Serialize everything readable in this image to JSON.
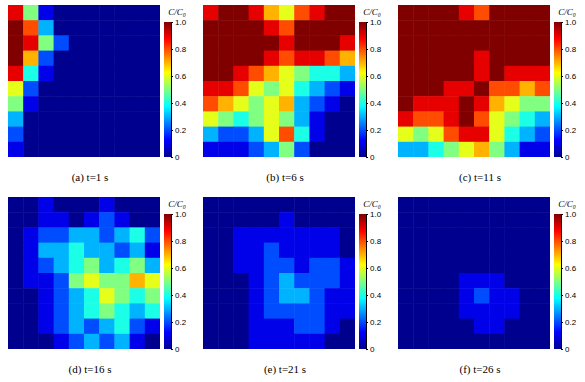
{
  "chart_data": [
    {
      "type": "heatmap",
      "title": "(a) t=1 s",
      "tick_labels": false,
      "colorbar": {
        "label": "C/C₀",
        "range": [
          0,
          1
        ],
        "ticks": [
          0,
          0.2,
          0.4,
          0.6,
          0.8,
          {
            "value": 1,
            "label": "1.0"
          }
        ]
      },
      "cells": [
        [
          0.9,
          0.5,
          0.1,
          0,
          0,
          0,
          0,
          0,
          0,
          0
        ],
        [
          1,
          0.8,
          0.3,
          0,
          0,
          0,
          0,
          0,
          0,
          0
        ],
        [
          1,
          0.9,
          0.5,
          0.2,
          0,
          0,
          0,
          0,
          0,
          0
        ],
        [
          1,
          0.7,
          0.2,
          0,
          0,
          0,
          0,
          0,
          0,
          0
        ],
        [
          0.9,
          0.4,
          0.1,
          0,
          0,
          0,
          0,
          0,
          0,
          0
        ],
        [
          0.6,
          0.2,
          0,
          0,
          0,
          0,
          0,
          0,
          0,
          0
        ],
        [
          0.5,
          0.1,
          0,
          0,
          0,
          0,
          0,
          0,
          0,
          0
        ],
        [
          0.3,
          0,
          0,
          0,
          0,
          0,
          0,
          0,
          0,
          0
        ],
        [
          0.2,
          0,
          0,
          0,
          0,
          0,
          0,
          0,
          0,
          0
        ],
        [
          0.1,
          0,
          0,
          0,
          0,
          0,
          0,
          0,
          0,
          0
        ]
      ]
    },
    {
      "type": "heatmap",
      "title": "(b) t=6 s",
      "tick_labels": false,
      "colorbar": {
        "label": "C/C₀",
        "range": [
          0,
          1
        ],
        "ticks": [
          0,
          0.2,
          0.4,
          0.6,
          0.8,
          {
            "value": 1,
            "label": "1.0"
          }
        ]
      },
      "cells": [
        [
          0.9,
          1,
          1,
          0.9,
          0.7,
          0.6,
          0.8,
          0.9,
          1,
          1
        ],
        [
          1,
          1,
          1,
          1,
          0.9,
          0.8,
          1,
          1,
          1,
          1
        ],
        [
          1,
          1,
          1,
          1,
          1,
          0.9,
          1,
          1,
          1,
          0.9
        ],
        [
          1,
          1,
          1,
          1,
          0.9,
          0.8,
          0.9,
          0.9,
          0.8,
          0.7
        ],
        [
          1,
          1,
          0.9,
          0.8,
          0.7,
          0.6,
          0.5,
          0.4,
          0.4,
          0.3
        ],
        [
          0.9,
          0.9,
          0.8,
          0.6,
          0.5,
          0.6,
          0.4,
          0.3,
          0.2,
          0.1
        ],
        [
          0.8,
          0.7,
          0.6,
          0.5,
          0.6,
          0.7,
          0.3,
          0.2,
          0.1,
          0
        ],
        [
          0.6,
          0.5,
          0.4,
          0.5,
          0.6,
          0.5,
          0.3,
          0.1,
          0,
          0
        ],
        [
          0.3,
          0.2,
          0.2,
          0.3,
          0.6,
          0.8,
          0.4,
          0.1,
          0,
          0
        ],
        [
          0.1,
          0.1,
          0.1,
          0.2,
          0.3,
          0.5,
          0.2,
          0,
          0,
          0
        ]
      ]
    },
    {
      "type": "heatmap",
      "title": "(c) t=11 s",
      "tick_labels": false,
      "colorbar": {
        "label": "C/C₀",
        "range": [
          0,
          1
        ],
        "ticks": [
          0,
          0.2,
          0.4,
          0.6,
          0.8,
          {
            "value": 1,
            "label": "1.0"
          }
        ]
      },
      "cells": [
        [
          1,
          1,
          1,
          1,
          0.9,
          0.8,
          1,
          1,
          1,
          1
        ],
        [
          1,
          1,
          1,
          1,
          1,
          1,
          1,
          1,
          1,
          1
        ],
        [
          1,
          1,
          1,
          1,
          1,
          1,
          1,
          1,
          1,
          1
        ],
        [
          1,
          1,
          1,
          1,
          1,
          0.9,
          1,
          1,
          1,
          1
        ],
        [
          1,
          1,
          1,
          1,
          1,
          0.9,
          1,
          0.9,
          0.9,
          0.9
        ],
        [
          1,
          1,
          1,
          0.9,
          0.9,
          1,
          0.8,
          0.8,
          0.7,
          0.8
        ],
        [
          1,
          0.9,
          0.9,
          0.9,
          1,
          0.9,
          0.7,
          0.6,
          0.5,
          0.5
        ],
        [
          0.9,
          0.8,
          0.8,
          0.9,
          1,
          0.8,
          0.6,
          0.5,
          0.4,
          0.3
        ],
        [
          0.6,
          0.5,
          0.6,
          0.8,
          0.9,
          0.9,
          0.6,
          0.4,
          0.3,
          0.2
        ],
        [
          0.3,
          0.3,
          0.4,
          0.5,
          0.6,
          0.7,
          0.5,
          0.3,
          0.1,
          0.1
        ]
      ]
    },
    {
      "type": "heatmap",
      "title": "(d) t=16 s",
      "tick_labels": false,
      "colorbar": {
        "label": "C/C₀",
        "range": [
          0,
          1
        ],
        "ticks": [
          0,
          0.2,
          0.4,
          0.6,
          0.8,
          {
            "value": 1,
            "label": "1.0"
          }
        ]
      },
      "cells": [
        [
          0,
          0,
          0.1,
          0,
          0,
          0,
          0.1,
          0,
          0,
          0
        ],
        [
          0,
          0,
          0.1,
          0.1,
          0,
          0.1,
          0.2,
          0.1,
          0,
          0
        ],
        [
          0,
          0.1,
          0.2,
          0.2,
          0.3,
          0.3,
          0.2,
          0.3,
          0.4,
          0.2
        ],
        [
          0,
          0.1,
          0.3,
          0.3,
          0.4,
          0.3,
          0.3,
          0.2,
          0.3,
          0.1
        ],
        [
          0,
          0.1,
          0.2,
          0.3,
          0.4,
          0.5,
          0.3,
          0.4,
          0.5,
          0.3
        ],
        [
          0,
          0.1,
          0.1,
          0.2,
          0.5,
          0.6,
          0.5,
          0.5,
          0.7,
          0.6
        ],
        [
          0,
          0,
          0.1,
          0.2,
          0.3,
          0.4,
          0.6,
          0.5,
          0.4,
          0.5
        ],
        [
          0,
          0,
          0.1,
          0.2,
          0.3,
          0.4,
          0.5,
          0.4,
          0.3,
          0.4
        ],
        [
          0,
          0,
          0.1,
          0.2,
          0.3,
          0.2,
          0.3,
          0.4,
          0.2,
          0.1
        ],
        [
          0,
          0,
          0,
          0.1,
          0.2,
          0.3,
          0.2,
          0.3,
          0.1,
          0
        ]
      ]
    },
    {
      "type": "heatmap",
      "title": "(e) t=21 s",
      "tick_labels": false,
      "colorbar": {
        "label": "C/C₀",
        "range": [
          0,
          1
        ],
        "ticks": [
          0,
          0.2,
          0.4,
          0.6,
          0.8,
          {
            "value": 1,
            "label": "1.0"
          }
        ]
      },
      "cells": [
        [
          0,
          0,
          0,
          0,
          0,
          0,
          0,
          0,
          0,
          0
        ],
        [
          0,
          0,
          0,
          0,
          0,
          0.1,
          0,
          0,
          0,
          0
        ],
        [
          0,
          0,
          0.1,
          0.1,
          0.1,
          0.1,
          0.1,
          0.1,
          0.1,
          0
        ],
        [
          0,
          0,
          0.1,
          0.1,
          0.2,
          0.1,
          0.1,
          0.1,
          0.1,
          0
        ],
        [
          0,
          0,
          0.1,
          0.1,
          0.2,
          0.2,
          0.1,
          0.2,
          0.2,
          0.1
        ],
        [
          0,
          0,
          0,
          0.1,
          0.2,
          0.3,
          0.2,
          0.2,
          0.2,
          0.1
        ],
        [
          0,
          0,
          0,
          0.1,
          0.2,
          0.3,
          0.3,
          0.2,
          0.1,
          0.1
        ],
        [
          0,
          0,
          0,
          0.1,
          0.2,
          0.2,
          0.2,
          0.2,
          0.1,
          0.1
        ],
        [
          0,
          0,
          0,
          0.1,
          0.1,
          0.1,
          0.2,
          0.2,
          0.1,
          0
        ],
        [
          0,
          0,
          0,
          0.1,
          0.1,
          0.1,
          0.1,
          0.1,
          0,
          0
        ]
      ]
    },
    {
      "type": "heatmap",
      "title": "(f) t=26 s",
      "tick_labels": false,
      "colorbar": {
        "label": "C/C₀",
        "range": [
          0,
          1
        ],
        "ticks": [
          0,
          0.2,
          0.4,
          0.6,
          0.8,
          {
            "value": 1,
            "label": "1.0"
          }
        ]
      },
      "cells": [
        [
          0,
          0,
          0,
          0,
          0,
          0,
          0,
          0,
          0,
          0
        ],
        [
          0,
          0,
          0,
          0,
          0,
          0,
          0,
          0,
          0,
          0
        ],
        [
          0,
          0,
          0,
          0,
          0,
          0,
          0,
          0,
          0,
          0
        ],
        [
          0,
          0,
          0,
          0,
          0,
          0,
          0,
          0,
          0,
          0
        ],
        [
          0,
          0,
          0,
          0,
          0,
          0,
          0,
          0,
          0,
          0
        ],
        [
          0,
          0,
          0,
          0,
          0.1,
          0.1,
          0.1,
          0,
          0,
          0
        ],
        [
          0,
          0,
          0,
          0,
          0.1,
          0.2,
          0.1,
          0.1,
          0,
          0
        ],
        [
          0,
          0,
          0,
          0,
          0.1,
          0.1,
          0.1,
          0.1,
          0,
          0
        ],
        [
          0,
          0,
          0,
          0,
          0,
          0.1,
          0.1,
          0,
          0,
          0
        ],
        [
          0,
          0,
          0,
          0,
          0,
          0,
          0,
          0,
          0,
          0
        ]
      ]
    }
  ]
}
